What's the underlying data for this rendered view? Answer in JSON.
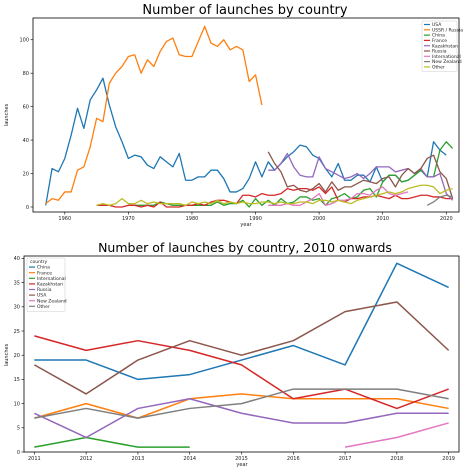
{
  "chart_data": [
    {
      "type": "line",
      "title": "Number of launches by country",
      "xlabel": "year",
      "ylabel": "launches",
      "xlim": [
        1955,
        2022
      ],
      "ylim": [
        -3,
        113
      ],
      "xticks": [
        1960,
        1970,
        1980,
        1990,
        2000,
        2010,
        2020
      ],
      "yticks": [
        0,
        20,
        40,
        60,
        80,
        100
      ],
      "grid": false,
      "legend_placement": "top-right",
      "series": [
        {
          "name": "USA",
          "color": "#1f77b4",
          "x": [
            1957,
            1958,
            1959,
            1960,
            1961,
            1962,
            1963,
            1964,
            1965,
            1966,
            1967,
            1968,
            1969,
            1970,
            1971,
            1972,
            1973,
            1974,
            1975,
            1976,
            1977,
            1978,
            1979,
            1980,
            1981,
            1982,
            1983,
            1984,
            1985,
            1986,
            1987,
            1988,
            1989,
            1990,
            1991,
            1992,
            1993,
            1994,
            1995,
            1996,
            1997,
            1998,
            1999,
            2000,
            2001,
            2002,
            2003,
            2004,
            2005,
            2006,
            2007,
            2008,
            2009,
            2010,
            2011,
            2012,
            2013,
            2014,
            2015,
            2016,
            2017,
            2018,
            2019,
            2020
          ],
          "values": [
            1,
            23,
            21,
            29,
            43,
            59,
            47,
            64,
            70,
            77,
            61,
            48,
            39,
            29,
            31,
            30,
            25,
            23,
            30,
            27,
            24,
            32,
            16,
            16,
            18,
            18,
            22,
            22,
            17,
            9,
            9,
            11,
            17,
            27,
            18,
            27,
            22,
            26,
            30,
            33,
            37,
            36,
            31,
            29,
            23,
            18,
            26,
            16,
            16,
            19,
            19,
            15,
            24,
            15,
            19,
            19,
            15,
            16,
            19,
            22,
            18,
            39,
            34,
            31
          ]
        },
        {
          "name": "USSR / Russia",
          "color": "#ff7f0e",
          "x": [
            1957,
            1958,
            1959,
            1960,
            1961,
            1962,
            1963,
            1964,
            1965,
            1966,
            1967,
            1968,
            1969,
            1970,
            1971,
            1972,
            1973,
            1974,
            1975,
            1976,
            1977,
            1978,
            1979,
            1980,
            1981,
            1982,
            1983,
            1984,
            1985,
            1986,
            1987,
            1988,
            1989,
            1990,
            1991
          ],
          "values": [
            2,
            5,
            4,
            9,
            9,
            22,
            24,
            36,
            53,
            51,
            74,
            80,
            84,
            90,
            91,
            80,
            88,
            84,
            93,
            99,
            101,
            91,
            90,
            90,
            99,
            108,
            98,
            96,
            100,
            94,
            96,
            94,
            75,
            79,
            61
          ]
        },
        {
          "name": "China",
          "color": "#2ca02c",
          "x": [
            1970,
            1971,
            1972,
            1973,
            1974,
            1975,
            1976,
            1977,
            1978,
            1979,
            1980,
            1981,
            1982,
            1983,
            1984,
            1985,
            1986,
            1987,
            1988,
            1989,
            1990,
            1991,
            1992,
            1993,
            1994,
            1995,
            1996,
            1997,
            1998,
            1999,
            2000,
            2001,
            2002,
            2003,
            2004,
            2005,
            2006,
            2007,
            2008,
            2009,
            2010,
            2011,
            2012,
            2013,
            2014,
            2015,
            2016,
            2017,
            2018,
            2019,
            2020,
            2021
          ],
          "values": [
            1,
            1,
            1,
            1,
            1,
            3,
            2,
            1,
            1,
            1,
            1,
            1,
            1,
            1,
            3,
            1,
            2,
            2,
            4,
            0,
            5,
            1,
            4,
            1,
            5,
            2,
            3,
            6,
            6,
            4,
            5,
            1,
            5,
            6,
            8,
            5,
            6,
            10,
            11,
            6,
            15,
            19,
            19,
            15,
            16,
            19,
            22,
            18,
            18,
            34,
            39,
            35
          ]
        },
        {
          "name": "France",
          "color": "#d62728",
          "x": [
            1965,
            1966,
            1967,
            1968,
            1969,
            1970,
            1971,
            1972,
            1973,
            1974,
            1975,
            1976,
            1977,
            1978,
            1979,
            1980,
            1981,
            1982,
            1983,
            1984,
            1985,
            1986,
            1987,
            1988,
            1989,
            1990,
            1991,
            1992,
            1993,
            1994,
            1995,
            1996,
            1997,
            1998,
            1999,
            2000,
            2001,
            2002,
            2003,
            2004,
            2005,
            2006,
            2007,
            2008,
            2009,
            2010,
            2011,
            2012,
            2013,
            2014,
            2015,
            2016,
            2017,
            2018,
            2019,
            2020,
            2021
          ],
          "values": [
            1,
            1,
            1,
            0,
            0,
            1,
            1,
            0,
            1,
            0,
            3,
            0,
            0,
            0,
            1,
            1,
            2,
            1,
            3,
            4,
            4,
            3,
            2,
            7,
            7,
            6,
            8,
            7,
            7,
            8,
            11,
            10,
            11,
            11,
            10,
            12,
            8,
            12,
            4,
            3,
            5,
            5,
            6,
            6,
            7,
            6,
            5,
            7,
            5,
            5,
            6,
            7,
            7,
            6,
            6,
            5,
            5
          ]
        },
        {
          "name": "Kazakhstan",
          "color": "#9467bd",
          "x": [
            1992,
            1993,
            1994,
            1995,
            1996,
            1997,
            1998,
            1999,
            2000,
            2001,
            2002,
            2003,
            2004,
            2005,
            2006,
            2007,
            2008,
            2009,
            2010,
            2011,
            2012,
            2013,
            2014,
            2015,
            2016,
            2017,
            2018,
            2019,
            2020,
            2021
          ],
          "values": [
            22,
            22,
            26,
            32,
            24,
            19,
            18,
            18,
            30,
            23,
            21,
            19,
            17,
            18,
            20,
            17,
            20,
            24,
            24,
            24,
            21,
            22,
            23,
            20,
            23,
            18,
            18,
            20,
            8,
            4
          ]
        },
        {
          "name": "Russia",
          "color": "#8c564b",
          "x": [
            1992,
            1993,
            1994,
            1995,
            1996,
            1997,
            1998,
            1999,
            2000,
            2001,
            2002,
            2003,
            2004,
            2005,
            2006,
            2007,
            2008,
            2009,
            2010,
            2011,
            2012,
            2013,
            2014,
            2015,
            2016,
            2017,
            2018,
            2019,
            2020,
            2021
          ],
          "values": [
            33,
            26,
            21,
            12,
            13,
            10,
            9,
            11,
            14,
            9,
            15,
            10,
            12,
            12,
            14,
            16,
            15,
            14,
            17,
            18,
            12,
            19,
            23,
            20,
            23,
            29,
            31,
            21,
            17,
            5
          ]
        },
        {
          "name": "International",
          "color": "#e377c2",
          "x": [
            1992,
            1993,
            1994,
            1995,
            1996,
            1997,
            1998,
            1999,
            2000,
            2001,
            2002,
            2003,
            2004,
            2005,
            2006,
            2007,
            2008,
            2009,
            2010,
            2011,
            2012,
            2013,
            2014
          ],
          "values": [
            1,
            1,
            1,
            2,
            1,
            1,
            3,
            5,
            8,
            1,
            2,
            4,
            4,
            5,
            8,
            8,
            7,
            10,
            12,
            8,
            7,
            8,
            9
          ]
        },
        {
          "name": "New Zealand",
          "color": "#7f7f7f",
          "x": [
            2017,
            2018,
            2019,
            2020,
            2021
          ],
          "values": [
            1,
            3,
            6,
            7,
            6
          ]
        },
        {
          "name": "Other",
          "color": "#bcbd22",
          "x": [
            1965,
            1966,
            1967,
            1968,
            1969,
            1970,
            1971,
            1972,
            1973,
            1974,
            1975,
            1976,
            1977,
            1978,
            1979,
            1980,
            1981,
            1982,
            1983,
            1984,
            1985,
            1986,
            1987,
            1988,
            1989,
            1990,
            1991,
            1992,
            1993,
            1994,
            1995,
            1996,
            1997,
            1998,
            1999,
            2000,
            2001,
            2002,
            2003,
            2004,
            2005,
            2006,
            2007,
            2008,
            2009,
            2010,
            2011,
            2012,
            2013,
            2014,
            2015,
            2016,
            2017,
            2018,
            2019,
            2020,
            2021
          ],
          "values": [
            1,
            2,
            1,
            2,
            5,
            2,
            2,
            4,
            2,
            3,
            2,
            2,
            2,
            2,
            1,
            3,
            2,
            3,
            2,
            4,
            2,
            3,
            2,
            3,
            2,
            2,
            3,
            3,
            2,
            3,
            2,
            2,
            3,
            3,
            2,
            4,
            4,
            3,
            4,
            3,
            2,
            4,
            5,
            6,
            7,
            8,
            9,
            8,
            9,
            11,
            12,
            13,
            13,
            12,
            8,
            10,
            11
          ]
        }
      ]
    },
    {
      "type": "line",
      "title": "Number of launches by country, 2010 onwards",
      "xlabel": "year",
      "ylabel": "launches",
      "xlim": [
        2010.8,
        2019.2
      ],
      "ylim": [
        0,
        40.5
      ],
      "xticks": [
        2011,
        2012,
        2013,
        2014,
        2015,
        2016,
        2017,
        2018,
        2019
      ],
      "yticks": [
        0,
        5,
        10,
        15,
        20,
        25,
        30,
        35,
        40
      ],
      "grid": false,
      "legend_title": "country",
      "legend_placement": "top-left",
      "series": [
        {
          "name": "China",
          "color": "#1f77b4",
          "x": [
            2011,
            2012,
            2013,
            2014,
            2015,
            2016,
            2017,
            2018,
            2019
          ],
          "values": [
            19,
            19,
            15,
            16,
            19,
            22,
            18,
            39,
            34
          ]
        },
        {
          "name": "France",
          "color": "#ff7f0e",
          "x": [
            2011,
            2012,
            2013,
            2014,
            2015,
            2016,
            2017,
            2018,
            2019
          ],
          "values": [
            7,
            10,
            7,
            11,
            12,
            11,
            11,
            11,
            9
          ]
        },
        {
          "name": "International",
          "color": "#2ca02c",
          "x": [
            2011,
            2012,
            2013,
            2014
          ],
          "values": [
            1,
            3,
            1,
            1
          ]
        },
        {
          "name": "Kazakhstan",
          "color": "#d62728",
          "x": [
            2011,
            2012,
            2013,
            2014,
            2015,
            2016,
            2017,
            2018,
            2019
          ],
          "values": [
            24,
            21,
            23,
            21,
            18,
            11,
            13,
            9,
            13
          ]
        },
        {
          "name": "Russia",
          "color": "#9467bd",
          "x": [
            2011,
            2012,
            2013,
            2014,
            2015,
            2016,
            2017,
            2018,
            2019
          ],
          "values": [
            8,
            3,
            9,
            11,
            8,
            6,
            6,
            8,
            8
          ]
        },
        {
          "name": "USA",
          "color": "#8c564b",
          "x": [
            2011,
            2012,
            2013,
            2014,
            2015,
            2016,
            2017,
            2018,
            2019
          ],
          "values": [
            18,
            12,
            19,
            23,
            20,
            23,
            29,
            31,
            21
          ]
        },
        {
          "name": "New Zealand",
          "color": "#e377c2",
          "x": [
            2017,
            2018,
            2019
          ],
          "values": [
            1,
            3,
            6
          ]
        },
        {
          "name": "Other",
          "color": "#7f7f7f",
          "x": [
            2011,
            2012,
            2013,
            2014,
            2015,
            2016,
            2017,
            2018,
            2019
          ],
          "values": [
            7,
            9,
            7,
            9,
            10,
            13,
            13,
            13,
            11
          ]
        }
      ]
    }
  ]
}
